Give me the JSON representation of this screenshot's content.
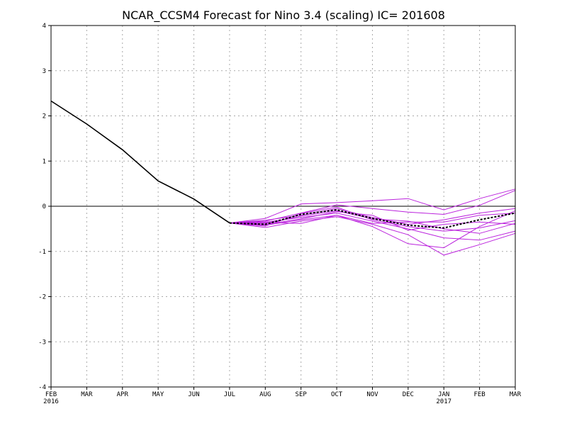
{
  "chart_data": {
    "type": "line",
    "title": "NCAR_CCSM4 Forecast for Nino 3.4 (scaling)  IC= 201608",
    "x_categories": [
      "FEB",
      "MAR",
      "APR",
      "MAY",
      "JUN",
      "JUL",
      "AUG",
      "SEP",
      "OCT",
      "NOV",
      "DEC",
      "JAN",
      "FEB",
      "MAR"
    ],
    "year_labels": [
      {
        "index": 0,
        "label": "2016"
      },
      {
        "index": 11,
        "label": "2017"
      }
    ],
    "ylim": [
      -4,
      4
    ],
    "yticks": [
      -4,
      -3,
      -2,
      -1,
      0,
      1,
      2,
      3,
      4
    ],
    "grid": true,
    "zero_line": true,
    "colors": {
      "observed": "#000000",
      "members": "#bb22dd",
      "ensemble_mean": "#000000",
      "grid": "#aaaaaa"
    },
    "observed": {
      "x": [
        "FEB 2016",
        "MAR",
        "APR",
        "MAY",
        "JUN",
        "JUL"
      ],
      "values": [
        2.33,
        1.82,
        1.25,
        0.56,
        0.16,
        -0.37
      ]
    },
    "ensemble_mean": {
      "x": [
        "JUL",
        "AUG",
        "SEP",
        "OCT",
        "NOV",
        "DEC",
        "JAN 2017",
        "FEB",
        "MAR"
      ],
      "values": [
        -0.37,
        -0.4,
        -0.18,
        -0.08,
        -0.27,
        -0.42,
        -0.48,
        -0.3,
        -0.15
      ]
    },
    "members": [
      {
        "x": [
          "JUL",
          "AUG",
          "SEP",
          "OCT",
          "NOV",
          "DEC",
          "JAN 2017",
          "FEB",
          "MAR"
        ],
        "values": [
          -0.37,
          -0.27,
          0.05,
          0.08,
          0.12,
          0.17,
          -0.08,
          0.17,
          0.38
        ]
      },
      {
        "x": [
          "JUL",
          "AUG",
          "SEP",
          "OCT",
          "NOV",
          "DEC",
          "JAN 2017",
          "FEB",
          "MAR"
        ],
        "values": [
          -0.37,
          -0.33,
          -0.15,
          0.03,
          -0.05,
          -0.13,
          -0.18,
          0.02,
          0.35
        ]
      },
      {
        "x": [
          "JUL",
          "AUG",
          "SEP",
          "OCT",
          "NOV",
          "DEC",
          "JAN 2017",
          "FEB",
          "MAR"
        ],
        "values": [
          -0.37,
          -0.38,
          -0.22,
          -0.1,
          -0.28,
          -0.33,
          -0.5,
          -0.6,
          -0.38
        ]
      },
      {
        "x": [
          "JUL",
          "AUG",
          "SEP",
          "OCT",
          "NOV",
          "DEC",
          "JAN 2017",
          "FEB",
          "MAR"
        ],
        "values": [
          -0.37,
          -0.42,
          -0.3,
          -0.2,
          -0.45,
          -0.83,
          -0.92,
          -0.45,
          -0.1
        ]
      },
      {
        "x": [
          "JUL",
          "AUG",
          "SEP",
          "OCT",
          "NOV",
          "DEC",
          "JAN 2017",
          "FEB",
          "MAR"
        ],
        "values": [
          -0.37,
          -0.47,
          -0.33,
          -0.23,
          -0.4,
          -0.63,
          -1.08,
          -0.85,
          -0.6
        ]
      },
      {
        "x": [
          "JUL",
          "AUG",
          "SEP",
          "OCT",
          "NOV",
          "DEC",
          "JAN 2017",
          "FEB",
          "MAR"
        ],
        "values": [
          -0.37,
          -0.35,
          -0.25,
          -0.15,
          -0.33,
          -0.5,
          -0.7,
          -0.75,
          -0.55
        ]
      },
      {
        "x": [
          "JUL",
          "AUG",
          "SEP",
          "OCT",
          "NOV",
          "DEC",
          "JAN 2017",
          "FEB",
          "MAR"
        ],
        "values": [
          -0.37,
          -0.36,
          -0.38,
          -0.2,
          -0.38,
          -0.35,
          -0.35,
          -0.2,
          -0.15
        ]
      },
      {
        "x": [
          "JUL",
          "AUG",
          "SEP",
          "OCT",
          "NOV",
          "DEC",
          "JAN 2017",
          "FEB",
          "MAR"
        ],
        "values": [
          -0.37,
          -0.31,
          -0.2,
          -0.05,
          -0.25,
          -0.4,
          -0.3,
          -0.15,
          -0.05
        ]
      },
      {
        "x": [
          "JUL",
          "AUG",
          "SEP",
          "OCT",
          "NOV",
          "DEC",
          "JAN 2017",
          "FEB",
          "MAR"
        ],
        "values": [
          -0.37,
          -0.4,
          -0.28,
          -0.12,
          -0.2,
          -0.53,
          -0.4,
          -0.35,
          -0.4
        ]
      },
      {
        "x": [
          "JUL",
          "AUG",
          "SEP",
          "OCT",
          "NOV",
          "DEC",
          "JAN 2017",
          "FEB",
          "MAR"
        ],
        "values": [
          -0.37,
          -0.44,
          -0.16,
          -0.02,
          -0.3,
          -0.45,
          -0.55,
          -0.48,
          -0.32
        ]
      }
    ]
  }
}
